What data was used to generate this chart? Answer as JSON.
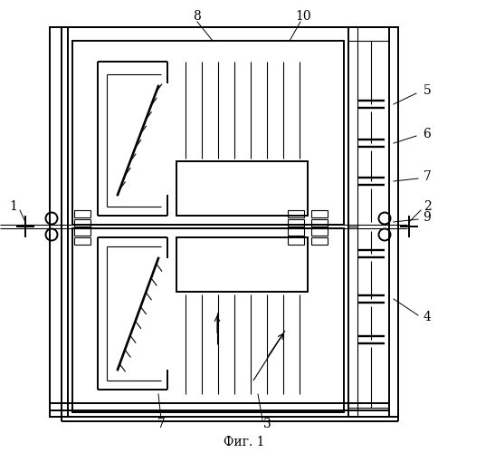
{
  "fig_label": "Фиг. 1",
  "lw": 1.4,
  "lw_thin": 0.8,
  "lw_med": 1.0,
  "bg": "#ffffff",
  "fg": "#000000"
}
